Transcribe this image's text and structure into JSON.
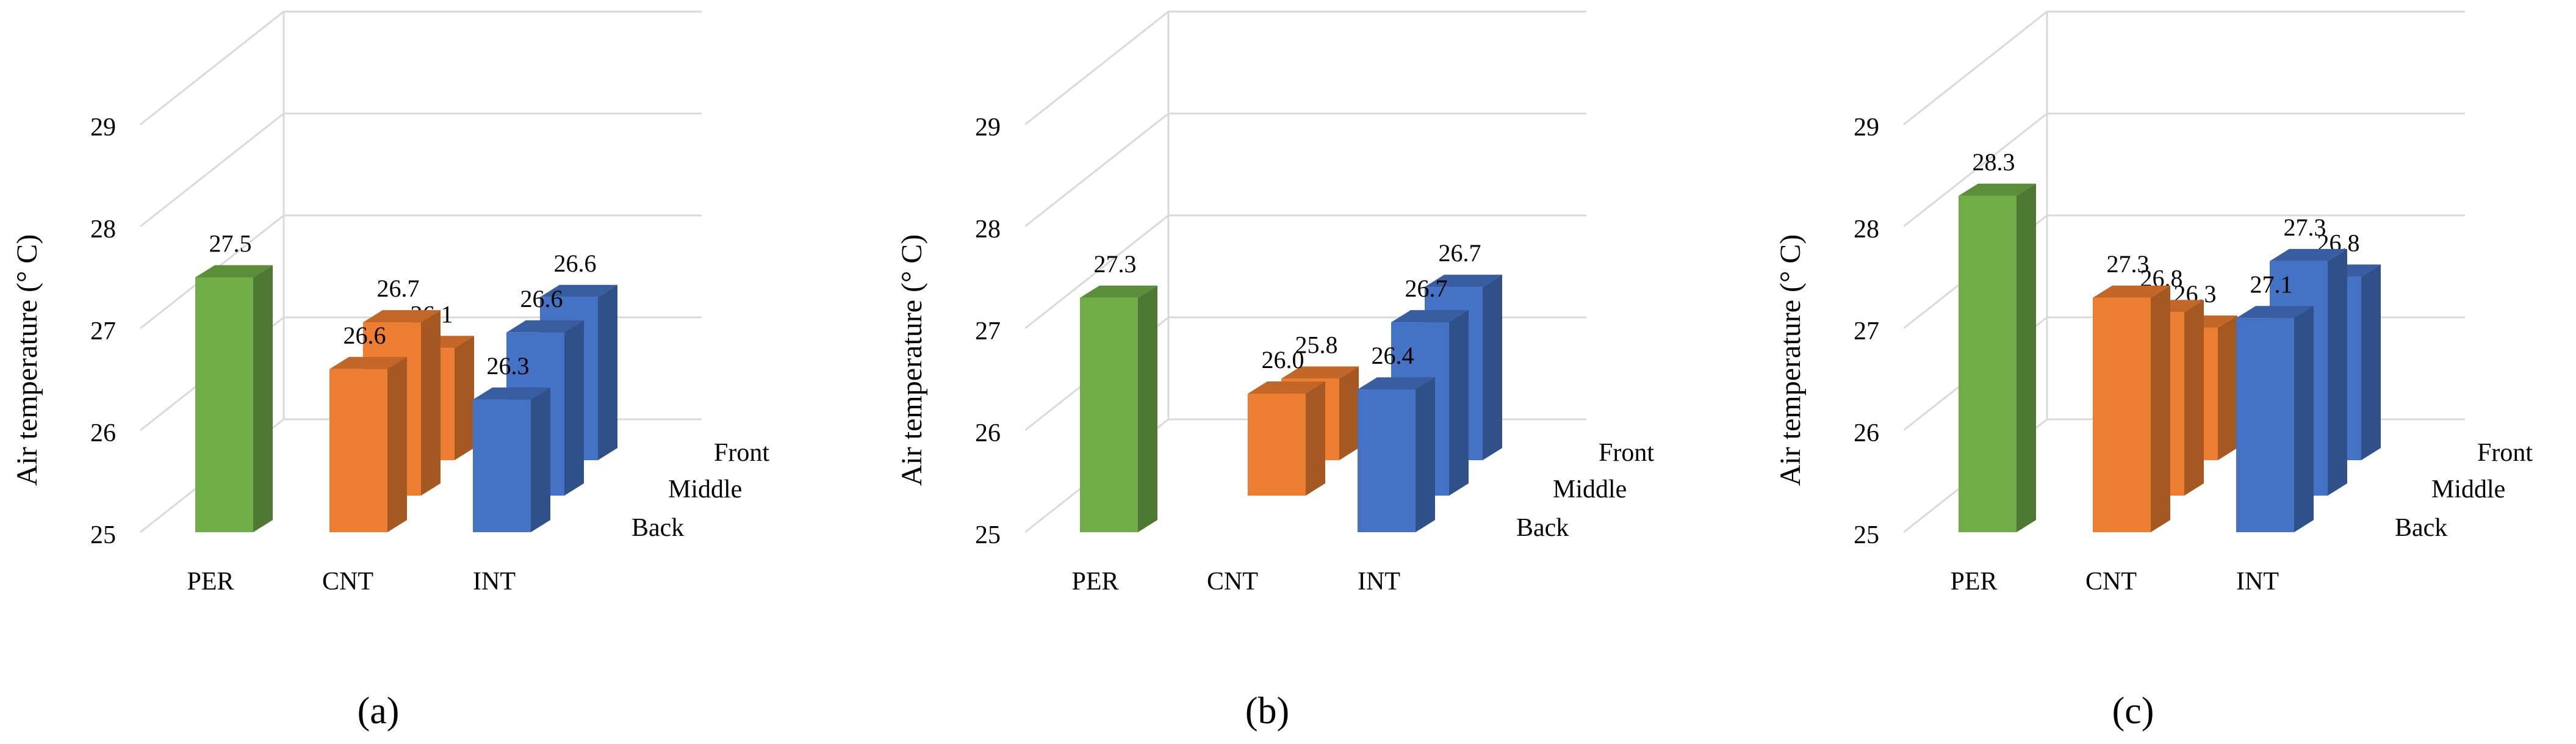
{
  "figure": {
    "colors": {
      "PER": "#70ad47",
      "CNT": "#ed7d31",
      "INT": "#4472c4",
      "grid": "#d9d9d9",
      "leader": "#a6a6a6"
    }
  },
  "chart_data": [
    {
      "type": "bar",
      "panel_label": "(a)",
      "ylabel": "Air temperature (° C)",
      "ylim": [
        25,
        29
      ],
      "yticks": [
        "25",
        "26",
        "27",
        "28",
        "29"
      ],
      "categories": [
        "PER",
        "CNT",
        "INT"
      ],
      "depth_labels": [
        "Back",
        "Middle",
        "Front"
      ],
      "bars": [
        {
          "category": "PER",
          "position": "Back",
          "value": 27.5,
          "label": "27.5"
        },
        {
          "category": "CNT",
          "position": "Back",
          "value": 26.6,
          "label": "26.6"
        },
        {
          "category": "CNT",
          "position": "Middle",
          "value": 26.7,
          "label": "26.7"
        },
        {
          "category": "CNT",
          "position": "Front",
          "value": 26.1,
          "label": "26.1"
        },
        {
          "category": "INT",
          "position": "Back",
          "value": 26.3,
          "label": "26.3"
        },
        {
          "category": "INT",
          "position": "Middle",
          "value": 26.6,
          "label": "26.6"
        },
        {
          "category": "INT",
          "position": "Front",
          "value": 26.6,
          "label": "26.6"
        }
      ]
    },
    {
      "type": "bar",
      "panel_label": "(b)",
      "ylabel": "Air temperature (° C)",
      "ylim": [
        25,
        29
      ],
      "yticks": [
        "25",
        "26",
        "27",
        "28",
        "29"
      ],
      "categories": [
        "PER",
        "CNT",
        "INT"
      ],
      "depth_labels": [
        "Back",
        "Middle",
        "Front"
      ],
      "bars": [
        {
          "category": "PER",
          "position": "Back",
          "value": 27.3,
          "label": "27.3"
        },
        {
          "category": "CNT",
          "position": "Middle",
          "value": 26.0,
          "label": "26.0"
        },
        {
          "category": "CNT",
          "position": "Front",
          "value": 25.8,
          "label": "25.8"
        },
        {
          "category": "INT",
          "position": "Back",
          "value": 26.4,
          "label": "26.4"
        },
        {
          "category": "INT",
          "position": "Middle",
          "value": 26.7,
          "label": "26.7"
        },
        {
          "category": "INT",
          "position": "Front",
          "value": 26.7,
          "label": "26.7"
        }
      ]
    },
    {
      "type": "bar",
      "panel_label": "(c)",
      "ylabel": "Air temperature (° C)",
      "ylim": [
        25,
        29
      ],
      "yticks": [
        "25",
        "26",
        "27",
        "28",
        "29"
      ],
      "categories": [
        "PER",
        "CNT",
        "INT"
      ],
      "depth_labels": [
        "Back",
        "Middle",
        "Front"
      ],
      "bars": [
        {
          "category": "PER",
          "position": "Back",
          "value": 28.3,
          "label": "28.3"
        },
        {
          "category": "CNT",
          "position": "Back",
          "value": 27.3,
          "label": "27.3"
        },
        {
          "category": "CNT",
          "position": "Middle",
          "value": 26.8,
          "label": "26.8"
        },
        {
          "category": "CNT",
          "position": "Front",
          "value": 26.3,
          "label": "26.3"
        },
        {
          "category": "INT",
          "position": "Back",
          "value": 27.1,
          "label": "27.1"
        },
        {
          "category": "INT",
          "position": "Middle",
          "value": 27.3,
          "label": "27.3"
        },
        {
          "category": "INT",
          "position": "Front",
          "value": 26.8,
          "label": "26.8"
        }
      ]
    }
  ]
}
